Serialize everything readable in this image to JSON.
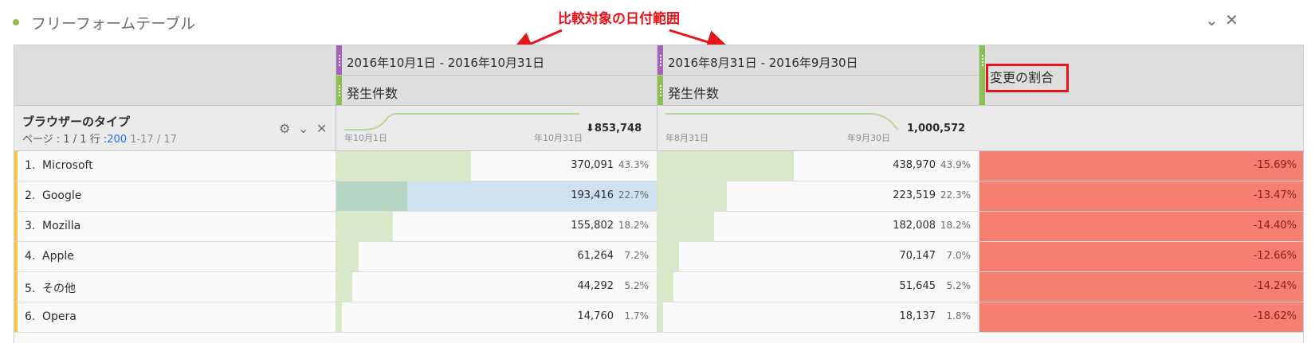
{
  "panel": {
    "title": "フリーフォームテーブル",
    "collapse_icon": "chevron-down-icon",
    "close_icon": "close-icon"
  },
  "annotation": {
    "text": "比較対象の日付範囲",
    "color": "#e8141b"
  },
  "columns": [
    {
      "date_range": "2016年10月1日 - 2016年10月31日",
      "metric": "発生件数",
      "spark_start": "年10月1日",
      "spark_end": "年10月31日",
      "total": "853,748",
      "total_icon": "arrow-down-icon",
      "total_prefix": "⬇"
    },
    {
      "date_range": "2016年8月31日 - 2016年9月30日",
      "metric": "発生件数",
      "spark_start": "年8月31日",
      "spark_end": "年9月30日",
      "total": "1,000,572"
    }
  ],
  "change_column": {
    "label": "変更の割合"
  },
  "dimension": {
    "title": "ブラウザーのタイプ",
    "page_label": "ページ : 1 / 1 行 :",
    "rows_per_page": "200",
    "range": "1-17 / 17",
    "icons": [
      "gear-icon",
      "chevron-down-icon",
      "close-icon"
    ],
    "icon_glyphs": [
      "⚙",
      "⌄",
      "✕"
    ]
  },
  "rows": [
    {
      "num": "1.",
      "label": "Microsoft",
      "v1": "370,091",
      "p1": "43.3%",
      "f1": 0.433,
      "v2": "438,970",
      "p2": "43.9%",
      "f2": 0.439,
      "change": "-15.69%"
    },
    {
      "num": "2.",
      "label": "Google",
      "v1": "193,416",
      "p1": "22.7%",
      "f1": 0.227,
      "v2": "223,519",
      "p2": "22.3%",
      "f2": 0.223,
      "change": "-13.47%"
    },
    {
      "num": "3.",
      "label": "Mozilla",
      "v1": "155,802",
      "p1": "18.2%",
      "f1": 0.182,
      "v2": "182,008",
      "p2": "18.2%",
      "f2": 0.182,
      "change": "-14.40%"
    },
    {
      "num": "4.",
      "label": "Apple",
      "v1": "61,264",
      "p1": "7.2%",
      "f1": 0.072,
      "v2": "70,147",
      "p2": "7.0%",
      "f2": 0.07,
      "change": "-12.66%"
    },
    {
      "num": "5.",
      "label": "その他",
      "v1": "44,292",
      "p1": "5.2%",
      "f1": 0.052,
      "v2": "51,645",
      "p2": "5.2%",
      "f2": 0.052,
      "change": "-14.24%"
    },
    {
      "num": "6.",
      "label": "Opera",
      "v1": "14,760",
      "p1": "1.7%",
      "f1": 0.017,
      "v2": "18,137",
      "p2": "1.8%",
      "f2": 0.018,
      "change": "-18.62%"
    }
  ],
  "colors": {
    "bar": "#d9e8c9",
    "selected_cell": "#cfe0ee",
    "change_negative": "#f57e72",
    "metric_purple": "#a462b8",
    "metric_green": "#8cc152",
    "row_accent": "#f5c842"
  }
}
